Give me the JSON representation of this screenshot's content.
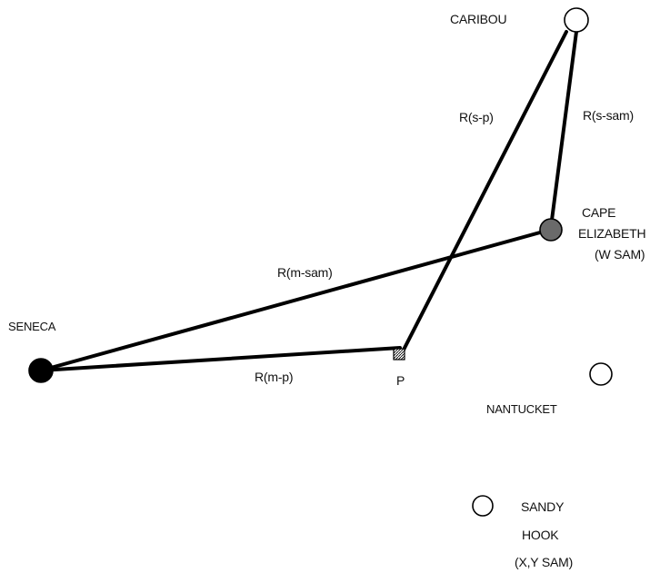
{
  "stations": {
    "caribou": {
      "name": "CARIBOU",
      "fill": "#ffffff",
      "stroke": "#000000"
    },
    "cape_elizabeth": {
      "name_line1": "CAPE",
      "name_line2": "ELIZABETH",
      "role": "(W SAM)",
      "fill": "#6a6a6a",
      "stroke": "#000000"
    },
    "seneca": {
      "name": "SENECA",
      "fill": "#000000",
      "stroke": "#000000"
    },
    "nantucket": {
      "name": "NANTUCKET",
      "fill": "#ffffff",
      "stroke": "#000000"
    },
    "sandy_hook": {
      "name_line1": "SANDY",
      "name_line2": "HOOK",
      "role": "(X,Y SAM)",
      "fill": "#ffffff",
      "stroke": "#000000"
    }
  },
  "point_p": {
    "label": "P",
    "fill": "#cfcfcf"
  },
  "ranges": {
    "r_s_p": "R(s-p)",
    "r_s_sam": "R(s-sam)",
    "r_m_sam": "R(m-sam)",
    "r_m_p": "R(m-p)"
  },
  "colors": {
    "line": "#000000",
    "background": "#ffffff"
  }
}
